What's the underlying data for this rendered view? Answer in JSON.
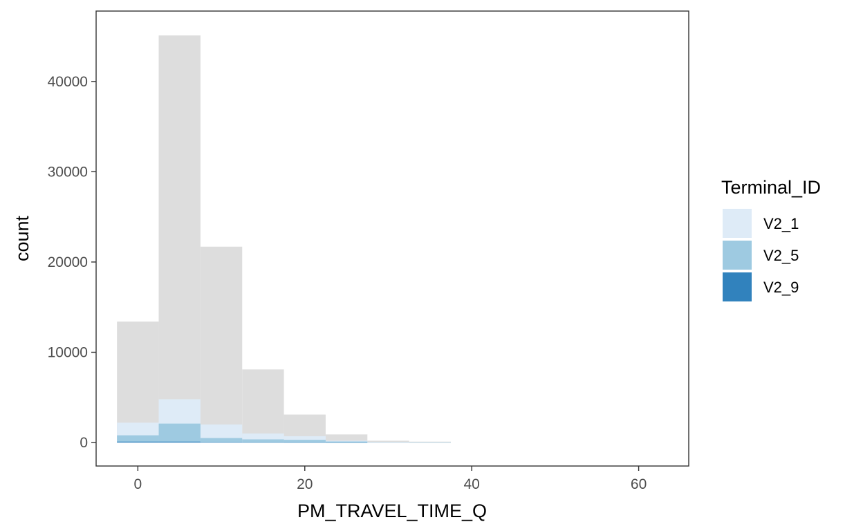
{
  "chart_data": {
    "type": "bar",
    "subtype": "overlaid-histogram",
    "xlabel": "PM_TRAVEL_TIME_Q",
    "ylabel": "count",
    "xlim": [
      -5,
      66
    ],
    "ylim": [
      -2600,
      47800
    ],
    "x_ticks": [
      0,
      20,
      40,
      60
    ],
    "y_ticks": [
      0,
      10000,
      20000,
      30000,
      40000
    ],
    "x_tick_labels": [
      "0",
      "20",
      "40",
      "60"
    ],
    "y_tick_labels": [
      "0",
      "10000",
      "20000",
      "30000",
      "40000"
    ],
    "bin_width": 5,
    "bin_centers": [
      0,
      5,
      10,
      15,
      20,
      25,
      30,
      35
    ],
    "background_series": {
      "name": "",
      "color": "#dddddd",
      "values": [
        13400,
        45100,
        21700,
        8100,
        3100,
        900,
        200,
        100
      ]
    },
    "series": [
      {
        "name": "V2_1",
        "color": "#deebf7",
        "values": [
          2200,
          4800,
          2000,
          1000,
          700,
          200,
          50,
          20
        ]
      },
      {
        "name": "V2_5",
        "color": "#9ecae1",
        "values": [
          800,
          2100,
          500,
          350,
          300,
          120,
          30,
          10
        ]
      },
      {
        "name": "V2_9",
        "color": "#3182bd",
        "values": [
          100,
          100,
          50,
          30,
          20,
          10,
          0,
          0
        ]
      }
    ],
    "legend": {
      "title": "Terminal_ID",
      "position": "right"
    },
    "grid": false,
    "panel_border": true
  }
}
